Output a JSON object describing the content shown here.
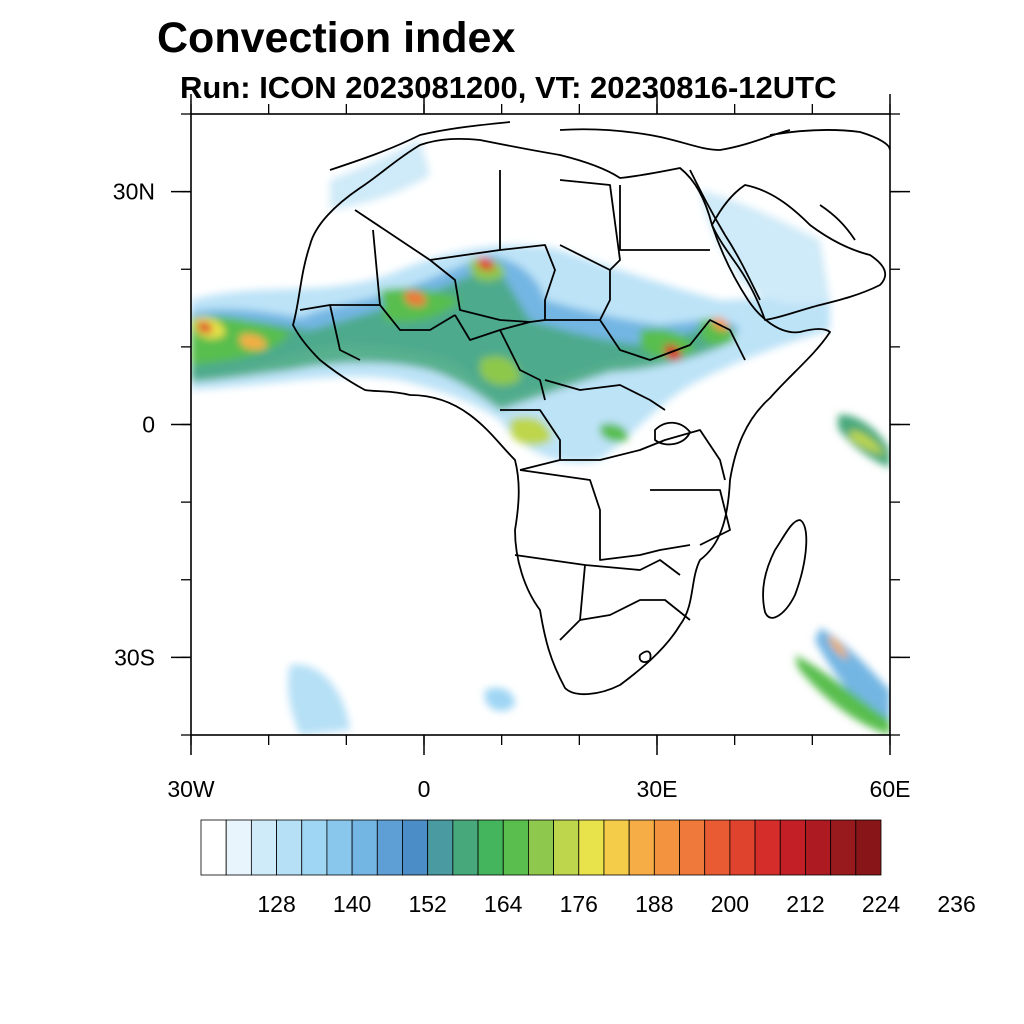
{
  "header": {
    "title": "Convection index",
    "subtitle": "Run: ICON 2023081200,  VT: 20230816-12UTC"
  },
  "map": {
    "region": "Africa",
    "lon_range": [
      -30,
      60
    ],
    "lat_range": [
      -40,
      40
    ],
    "lat_ticks": [
      {
        "value": 30,
        "label": "30N"
      },
      {
        "value": 0,
        "label": "0"
      },
      {
        "value": -30,
        "label": "30S"
      }
    ],
    "lon_ticks": [
      {
        "value": -30,
        "label": "30W"
      },
      {
        "value": 0,
        "label": "0"
      },
      {
        "value": 30,
        "label": "30E"
      },
      {
        "value": 60,
        "label": "60E"
      }
    ]
  },
  "colorbar": {
    "colors": [
      "#ffffff",
      "#e8f5fc",
      "#cfeaf8",
      "#b6e0f6",
      "#9fd6f4",
      "#8ac7ec",
      "#73b6e3",
      "#5e9fd5",
      "#4b8dc6",
      "#4a9aa2",
      "#47a87c",
      "#45b55d",
      "#59be4e",
      "#8ec84c",
      "#bdd64c",
      "#e8e34a",
      "#f5cb4a",
      "#f6ad45",
      "#f39340",
      "#ef783b",
      "#e85b33",
      "#e0432d",
      "#d52d29",
      "#c21f26",
      "#ae1a22",
      "#981a1d",
      "#881619"
    ],
    "labels": [
      "128",
      "140",
      "152",
      "164",
      "176",
      "188",
      "200",
      "212",
      "224",
      "236"
    ]
  }
}
